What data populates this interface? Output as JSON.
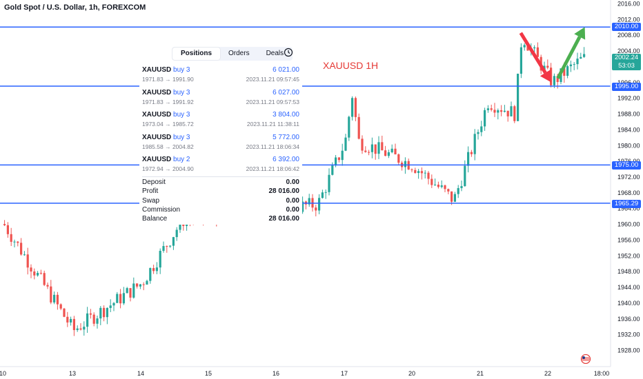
{
  "header": {
    "symbol_line": "Gold Spot / U.S. Dollar, 1h, FOREXCOM"
  },
  "annotation": "XAUUSD 1H",
  "panel": {
    "tabs": [
      "Positions",
      "Orders",
      "Deals"
    ],
    "positions": [
      {
        "symbol": "XAUUSD",
        "side": "buy 3",
        "pnl": "6 021.00",
        "prices": "1971.83 → 1991.90",
        "time": "2023.11.21 09:57:45"
      },
      {
        "symbol": "XAUUSD",
        "side": "buy 3",
        "pnl": "6 027.00",
        "prices": "1971.83 → 1991.92",
        "time": "2023.11.21 09:57:53"
      },
      {
        "symbol": "XAUUSD",
        "side": "buy 3",
        "pnl": "3 804.00",
        "prices": "1973.04 → 1985.72",
        "time": "2023.11.21 11:38:11"
      },
      {
        "symbol": "XAUUSD",
        "side": "buy 3",
        "pnl": "5 772.00",
        "prices": "1985.58 → 2004.82",
        "time": "2023.11.21 18:06:34"
      },
      {
        "symbol": "XAUUSD",
        "side": "buy 2",
        "pnl": "6 392.00",
        "prices": "1972.94 → 2004.90",
        "time": "2023.11.21 18:06:42"
      }
    ],
    "summary": [
      {
        "label": "Deposit",
        "value": "0.00"
      },
      {
        "label": "Profit",
        "value": "28 016.00"
      },
      {
        "label": "Swap",
        "value": "0.00"
      },
      {
        "label": "Commission",
        "value": "0.00"
      },
      {
        "label": "Balance",
        "value": "28 016.00"
      }
    ]
  },
  "price_labels": [
    "2010.00",
    "1995.00",
    "1975.00",
    "1965.29"
  ],
  "current_price": {
    "price": "2002.24",
    "countdown": "53:03"
  },
  "colors": {
    "up": "#26a69a",
    "down": "#ef5350",
    "level_line": "#2962ff",
    "arrow_up": "#4caf50",
    "arrow_down": "#f23645"
  },
  "chart_data": {
    "type": "candlestick",
    "title": "Gold Spot / U.S. Dollar, 1h, FOREXCOM",
    "y_ticks": [
      "2016.00",
      "2012.00",
      "2008.00",
      "2004.00",
      "2000.00",
      "1996.00",
      "1992.00",
      "1988.00",
      "1984.00",
      "1980.00",
      "1976.00",
      "1972.00",
      "1968.00",
      "1964.00",
      "1960.00",
      "1956.00",
      "1952.00",
      "1948.00",
      "1944.00",
      "1940.00",
      "1936.00",
      "1932.00",
      "1928.00"
    ],
    "x_ticks": [
      "10",
      "13",
      "14",
      "15",
      "16",
      "17",
      "20",
      "21",
      "22",
      "18:00"
    ],
    "ylim": [
      1925.9,
      2017.6
    ],
    "horizontal_levels": [
      2010.0,
      1995.0,
      1975.0,
      1965.29
    ],
    "grid": false,
    "arrows": [
      {
        "direction": "down",
        "from": [
          21.6,
          2008.5
        ],
        "to": [
          22.05,
          1996
        ]
      },
      {
        "direction": "up",
        "from": [
          22.15,
          1997
        ],
        "to": [
          22.55,
          2010
        ]
      }
    ],
    "key_points": [
      {
        "date": "10",
        "price": 1960
      },
      {
        "date": "13",
        "price": 1933
      },
      {
        "date": "14",
        "price": 1945
      },
      {
        "date": "14.6",
        "price": 1961
      },
      {
        "date": "16.6",
        "price": 1965
      },
      {
        "date": "17.3",
        "price": 1993
      },
      {
        "date": "17.6",
        "price": 1981
      },
      {
        "date": "20",
        "price": 1975
      },
      {
        "date": "20.6",
        "price": 1966
      },
      {
        "date": "21.1",
        "price": 1991
      },
      {
        "date": "21.5",
        "price": 1988
      },
      {
        "date": "21.6",
        "price": 2008
      },
      {
        "date": "22.05",
        "price": 1996
      },
      {
        "date": "22.5",
        "price": 2002
      }
    ]
  }
}
